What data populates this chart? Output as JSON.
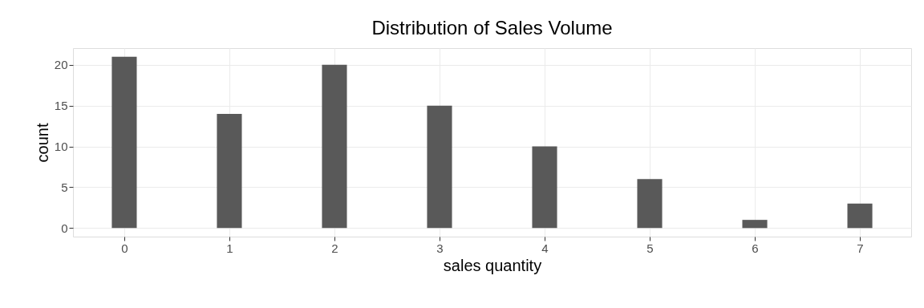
{
  "chart_data": {
    "type": "bar",
    "title": "Distribution of Sales Volume",
    "xlabel": "sales quantity",
    "ylabel": "count",
    "x": [
      0,
      1,
      2,
      3,
      4,
      5,
      6,
      7
    ],
    "values": [
      21,
      14,
      20,
      15,
      10,
      6,
      1,
      3
    ],
    "color": "#595959",
    "xlim": [
      -0.45,
      7.45
    ],
    "xticks": [
      0,
      1,
      2,
      3,
      4,
      5,
      6,
      7
    ],
    "ylim": [
      -1.05,
      22.05
    ],
    "yticks": [
      0,
      5,
      10,
      15,
      20
    ],
    "grid": true
  }
}
